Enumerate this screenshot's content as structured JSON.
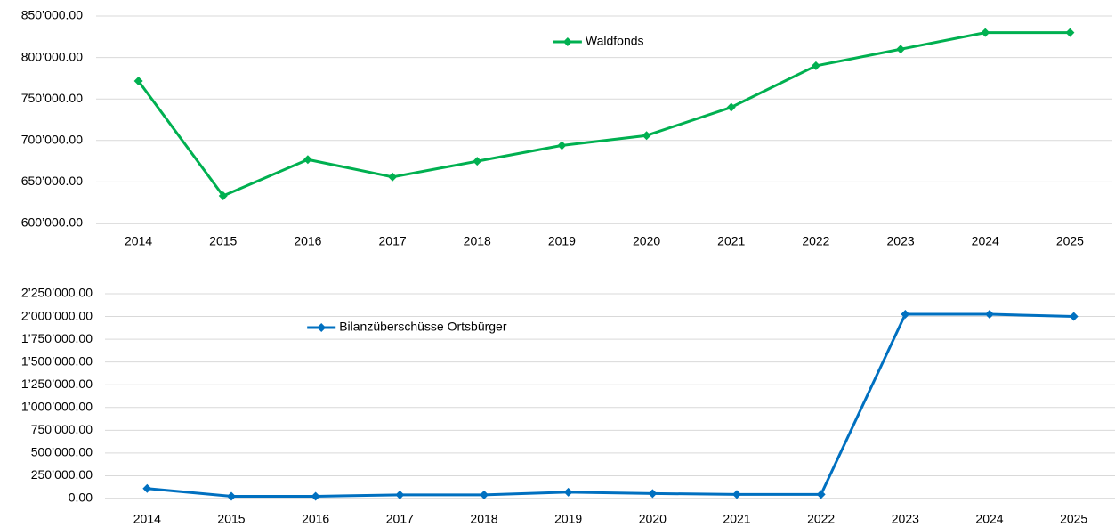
{
  "chart_data": [
    {
      "type": "line",
      "categories": [
        "2014",
        "2015",
        "2016",
        "2017",
        "2018",
        "2019",
        "2020",
        "2021",
        "2022",
        "2023",
        "2024",
        "2025"
      ],
      "series": [
        {
          "name": "Waldfonds",
          "color": "#00b050",
          "values": [
            771700,
            633300,
            677000,
            656000,
            675000,
            694000,
            706000,
            740000,
            790000,
            810000,
            830000,
            830000
          ]
        }
      ],
      "ylim": [
        600000,
        850000
      ],
      "yticks": [
        {
          "value": 600000,
          "label": "600’000.00"
        },
        {
          "value": 650000,
          "label": "650’000.00"
        },
        {
          "value": 700000,
          "label": "700’000.00"
        },
        {
          "value": 750000,
          "label": "750’000.00"
        },
        {
          "value": 800000,
          "label": "800’000.00"
        },
        {
          "value": 850000,
          "label": "850’000.00"
        }
      ],
      "grid": true,
      "legend": "upper-center"
    },
    {
      "type": "line",
      "categories": [
        "2014",
        "2015",
        "2016",
        "2017",
        "2018",
        "2019",
        "2020",
        "2021",
        "2022",
        "2023",
        "2024",
        "2025"
      ],
      "series": [
        {
          "name": "Bilanzüberschüsse Ortsbürger",
          "color": "#0070c0",
          "values": [
            110000,
            25000,
            25000,
            40000,
            40000,
            70000,
            55000,
            45000,
            45000,
            2025000,
            2025000,
            2000000
          ]
        }
      ],
      "ylim": [
        0,
        2250000
      ],
      "yticks": [
        {
          "value": 0,
          "label": "0.00"
        },
        {
          "value": 250000,
          "label": "250’000.00"
        },
        {
          "value": 500000,
          "label": "500’000.00"
        },
        {
          "value": 750000,
          "label": "750’000.00"
        },
        {
          "value": 1000000,
          "label": "1’000’000.00"
        },
        {
          "value": 1250000,
          "label": "1’250’000.00"
        },
        {
          "value": 1500000,
          "label": "1’500’000.00"
        },
        {
          "value": 1750000,
          "label": "1’750’000.00"
        },
        {
          "value": 2000000,
          "label": "2’000’000.00"
        },
        {
          "value": 2250000,
          "label": "2’250’000.00"
        }
      ],
      "grid": true,
      "legend": "upper-left"
    }
  ]
}
